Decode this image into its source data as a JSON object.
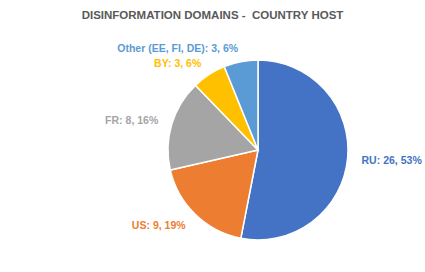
{
  "chart_data": {
    "type": "pie",
    "title": "DISINFORMATION DOMAINS -  COUNTRY HOST",
    "categories": [
      "RU:",
      "US:",
      "FR:",
      "BY:",
      "Other (EE, FI, DE):"
    ],
    "values": [
      26,
      9,
      8,
      3,
      3
    ],
    "value_labels": [
      "26, 53%",
      "9, 19%",
      "8, 16%",
      "3, 6%",
      "3, 6%"
    ],
    "colors": [
      "#4472c4",
      "#ed7d31",
      "#a5a5a5",
      "#ffc000",
      "#5b9bd5"
    ],
    "data_labels": true
  }
}
